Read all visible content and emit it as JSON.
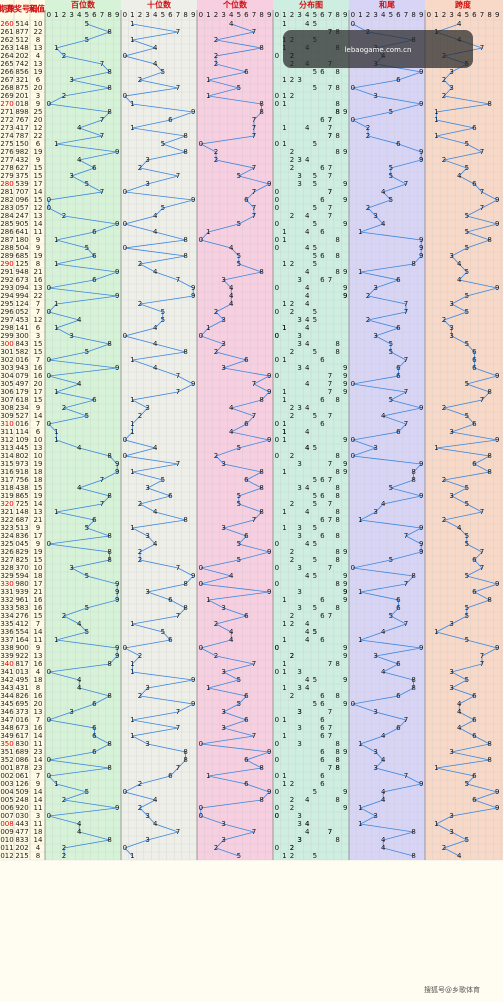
{
  "header": {
    "columns": [
      "期数",
      "开奖号码",
      "和值"
    ],
    "sections": [
      "百位数",
      "十位数",
      "个位数",
      "分布图",
      "和尾",
      "跨度"
    ],
    "digits": [
      0,
      1,
      2,
      3,
      4,
      5,
      6,
      7,
      8,
      9
    ]
  },
  "rows": [
    [
      "260",
      "514",
      10,
      5,
      1,
      4,
      0,
      4
    ],
    [
      "261",
      "877",
      22,
      8,
      7,
      7,
      2,
      1
    ],
    [
      "262",
      "512",
      8,
      5,
      1,
      2,
      8,
      4
    ],
    [
      "263",
      "148",
      13,
      1,
      4,
      8,
      3,
      7
    ],
    [
      "264",
      "202",
      4,
      2,
      0,
      2,
      4,
      2
    ],
    [
      "265",
      "742",
      13,
      7,
      4,
      2,
      3,
      5
    ],
    [
      "266",
      "856",
      19,
      8,
      5,
      6,
      9,
      3
    ],
    [
      "267",
      "321",
      6,
      3,
      2,
      1,
      6,
      2
    ],
    [
      "268",
      "875",
      20,
      8,
      7,
      5,
      0,
      3
    ],
    [
      "269",
      "201",
      3,
      2,
      0,
      1,
      3,
      2
    ],
    [
      "270",
      "018",
      9,
      0,
      1,
      8,
      9,
      8
    ],
    [
      "271",
      "898",
      25,
      8,
      9,
      8,
      5,
      1
    ],
    [
      "272",
      "767",
      20,
      7,
      6,
      7,
      0,
      1
    ],
    [
      "273",
      "417",
      12,
      4,
      1,
      7,
      2,
      6
    ],
    [
      "274",
      "787",
      22,
      7,
      8,
      7,
      2,
      1
    ],
    [
      "275",
      "150",
      6,
      1,
      5,
      0,
      6,
      5
    ],
    [
      "276",
      "982",
      19,
      9,
      8,
      2,
      9,
      7
    ],
    [
      "277",
      "432",
      9,
      4,
      3,
      2,
      9,
      2
    ],
    [
      "278",
      "627",
      15,
      6,
      2,
      7,
      5,
      5
    ],
    [
      "279",
      "375",
      15,
      3,
      7,
      5,
      5,
      4
    ],
    [
      "280",
      "539",
      17,
      5,
      3,
      9,
      7,
      6
    ],
    [
      "281",
      "707",
      14,
      7,
      0,
      7,
      4,
      7
    ],
    [
      "282",
      "096",
      15,
      0,
      9,
      6,
      5,
      9
    ],
    [
      "283",
      "057",
      12,
      0,
      5,
      7,
      2,
      7
    ],
    [
      "284",
      "247",
      13,
      2,
      4,
      7,
      3,
      5
    ],
    [
      "285",
      "905",
      14,
      9,
      0,
      5,
      4,
      9
    ],
    [
      "286",
      "641",
      11,
      6,
      4,
      1,
      1,
      5
    ],
    [
      "287",
      "180",
      9,
      1,
      8,
      0,
      9,
      8
    ],
    [
      "288",
      "504",
      9,
      5,
      0,
      4,
      9,
      5
    ],
    [
      "289",
      "685",
      19,
      6,
      8,
      5,
      9,
      3
    ],
    [
      "290",
      "125",
      8,
      1,
      2,
      5,
      8,
      4
    ],
    [
      "291",
      "948",
      21,
      9,
      4,
      8,
      1,
      5
    ],
    [
      "292",
      "673",
      16,
      6,
      7,
      3,
      6,
      4
    ],
    [
      "293",
      "094",
      13,
      0,
      9,
      4,
      3,
      9
    ],
    [
      "294",
      "994",
      22,
      9,
      9,
      4,
      2,
      5
    ],
    [
      "295",
      "124",
      7,
      1,
      2,
      4,
      7,
      3
    ],
    [
      "296",
      "052",
      7,
      0,
      5,
      2,
      7,
      5
    ],
    [
      "297",
      "453",
      12,
      4,
      5,
      3,
      2,
      2
    ],
    [
      "298",
      "141",
      6,
      1,
      4,
      1,
      6,
      3
    ],
    [
      "299",
      "300",
      3,
      3,
      0,
      0,
      3,
      3
    ],
    [
      "300",
      "843",
      15,
      8,
      4,
      3,
      5,
      5
    ],
    [
      "301",
      "582",
      15,
      5,
      8,
      2,
      5,
      6
    ],
    [
      "302",
      "016",
      7,
      0,
      1,
      6,
      7,
      6
    ],
    [
      "303",
      "943",
      16,
      9,
      4,
      3,
      6,
      6
    ],
    [
      "304",
      "079",
      16,
      0,
      7,
      9,
      6,
      9
    ],
    [
      "305",
      "497",
      20,
      4,
      9,
      7,
      0,
      5
    ],
    [
      "306",
      "179",
      17,
      1,
      7,
      9,
      7,
      8
    ],
    [
      "307",
      "618",
      15,
      6,
      1,
      8,
      5,
      7
    ],
    [
      "308",
      "234",
      9,
      2,
      3,
      4,
      9,
      2
    ],
    [
      "309",
      "527",
      14,
      5,
      2,
      7,
      4,
      5
    ],
    [
      "310",
      "016",
      7,
      0,
      1,
      6,
      7,
      6
    ],
    [
      "311",
      "114",
      6,
      1,
      1,
      4,
      6,
      3
    ],
    [
      "312",
      "109",
      10,
      1,
      0,
      9,
      0,
      9
    ],
    [
      "313",
      "445",
      13,
      4,
      4,
      5,
      3,
      1
    ],
    [
      "314",
      "802",
      10,
      8,
      0,
      2,
      0,
      8
    ],
    [
      "315",
      "973",
      19,
      9,
      7,
      3,
      9,
      6
    ],
    [
      "316",
      "918",
      18,
      9,
      1,
      8,
      8,
      8
    ],
    [
      "317",
      "756",
      18,
      7,
      5,
      6,
      8,
      2
    ],
    [
      "318",
      "438",
      15,
      4,
      3,
      8,
      5,
      5
    ],
    [
      "319",
      "865",
      19,
      8,
      6,
      5,
      9,
      3
    ],
    [
      "320",
      "725",
      14,
      7,
      2,
      5,
      4,
      5
    ],
    [
      "321",
      "148",
      13,
      1,
      4,
      8,
      3,
      7
    ],
    [
      "322",
      "687",
      21,
      6,
      8,
      7,
      1,
      2
    ],
    [
      "323",
      "513",
      9,
      5,
      1,
      3,
      9,
      4
    ],
    [
      "324",
      "836",
      17,
      8,
      3,
      6,
      7,
      5
    ],
    [
      "325",
      "045",
      9,
      0,
      4,
      5,
      9,
      5
    ],
    [
      "326",
      "829",
      19,
      8,
      2,
      9,
      9,
      7
    ],
    [
      "327",
      "825",
      15,
      8,
      2,
      5,
      5,
      6
    ],
    [
      "328",
      "370",
      10,
      3,
      7,
      0,
      0,
      7
    ],
    [
      "329",
      "594",
      18,
      5,
      9,
      4,
      8,
      5
    ],
    [
      "330",
      "980",
      17,
      9,
      8,
      0,
      7,
      9
    ],
    [
      "331",
      "939",
      21,
      9,
      3,
      9,
      1,
      6
    ],
    [
      "332",
      "961",
      16,
      9,
      6,
      1,
      6,
      8
    ],
    [
      "333",
      "583",
      16,
      5,
      8,
      3,
      6,
      5
    ],
    [
      "334",
      "276",
      15,
      2,
      7,
      6,
      5,
      5
    ],
    [
      "335",
      "412",
      7,
      4,
      1,
      2,
      7,
      3
    ],
    [
      "336",
      "554",
      14,
      5,
      5,
      4,
      4,
      1
    ],
    [
      "337",
      "164",
      11,
      1,
      6,
      4,
      1,
      5
    ],
    [
      "338",
      "900",
      9,
      9,
      0,
      0,
      9,
      9
    ],
    [
      "339",
      "922",
      13,
      9,
      2,
      2,
      3,
      7
    ],
    [
      "340",
      "817",
      16,
      8,
      1,
      7,
      6,
      7
    ],
    [
      "341",
      "013",
      4,
      0,
      1,
      3,
      4,
      3
    ],
    [
      "342",
      "495",
      18,
      4,
      9,
      5,
      8,
      5
    ],
    [
      "343",
      "431",
      8,
      4,
      3,
      1,
      8,
      3
    ],
    [
      "344",
      "826",
      16,
      8,
      2,
      6,
      6,
      6
    ],
    [
      "345",
      "695",
      20,
      6,
      9,
      5,
      0,
      4
    ],
    [
      "346",
      "373",
      13,
      3,
      7,
      3,
      3,
      4
    ],
    [
      "347",
      "016",
      7,
      0,
      1,
      6,
      7,
      6
    ],
    [
      "348",
      "673",
      16,
      6,
      7,
      3,
      6,
      4
    ],
    [
      "349",
      "617",
      14,
      6,
      1,
      7,
      4,
      6
    ],
    [
      "350",
      "830",
      11,
      8,
      3,
      0,
      1,
      8
    ],
    [
      "351",
      "689",
      23,
      6,
      8,
      9,
      3,
      3
    ],
    [
      "352",
      "086",
      14,
      0,
      8,
      6,
      4,
      8
    ],
    [
      "001",
      "878",
      23,
      8,
      7,
      8,
      3,
      1
    ],
    [
      "002",
      "061",
      7,
      0,
      6,
      1,
      7,
      6
    ],
    [
      "003",
      "126",
      9,
      1,
      2,
      6,
      9,
      5
    ],
    [
      "004",
      "509",
      14,
      5,
      0,
      9,
      4,
      9
    ],
    [
      "005",
      "248",
      14,
      2,
      4,
      8,
      4,
      6
    ],
    [
      "006",
      "920",
      11,
      9,
      2,
      0,
      1,
      9
    ],
    [
      "007",
      "030",
      3,
      0,
      3,
      0,
      3,
      3
    ],
    [
      "008",
      "443",
      11,
      4,
      4,
      3,
      1,
      1
    ],
    [
      "009",
      "477",
      18,
      4,
      7,
      7,
      8,
      3
    ],
    [
      "010",
      "833",
      14,
      8,
      3,
      3,
      4,
      5
    ],
    [
      "011",
      "202",
      4,
      2,
      0,
      2,
      4,
      2
    ],
    [
      "012",
      "215",
      8,
      2,
      1,
      5,
      8,
      4
    ]
  ],
  "watermark": "lebaogame.com.cn",
  "footer": "搜狐号@乡歌体育"
}
